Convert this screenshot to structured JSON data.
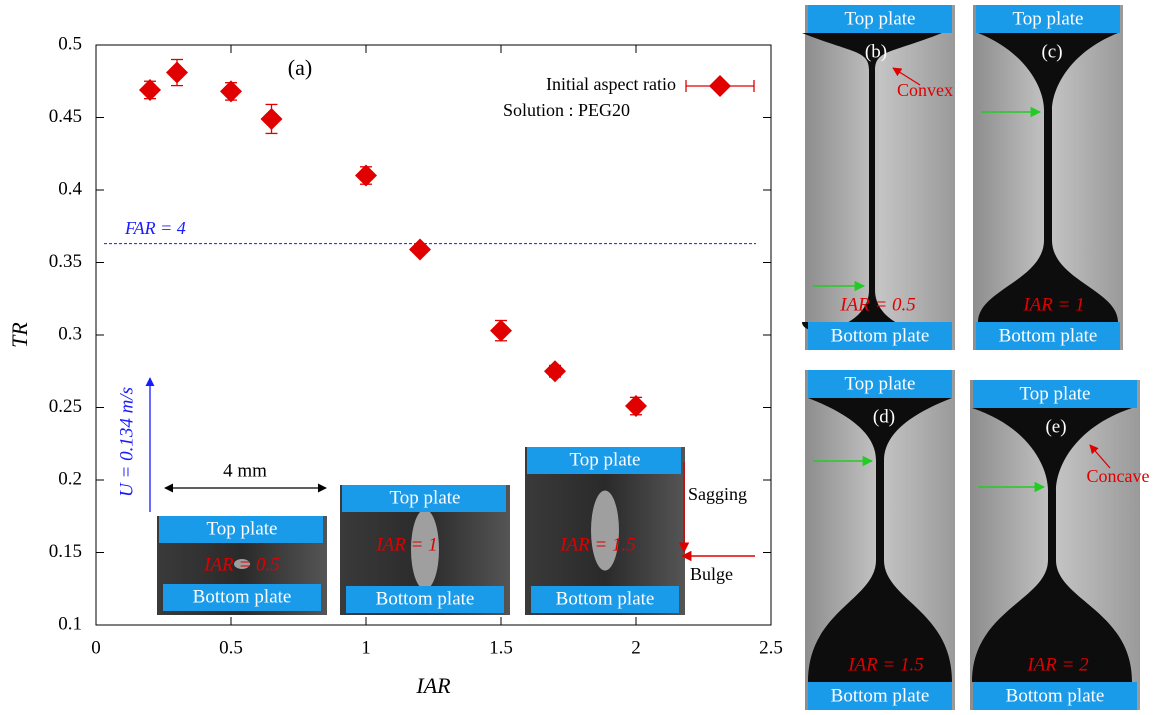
{
  "chart_data": {
    "type": "scatter",
    "xlabel": "IAR",
    "ylabel": "TR",
    "xlim": [
      0,
      2.5
    ],
    "xticks": [
      0,
      0.5,
      1,
      1.5,
      2,
      2.5
    ],
    "ylim": [
      0.1,
      0.5
    ],
    "yticks": [
      0.1,
      0.15,
      0.2,
      0.25,
      0.3,
      0.35,
      0.4,
      0.45,
      0.5
    ],
    "legend": "upper right",
    "series": [
      {
        "name": "Initial aspect ratio",
        "color": "#e00000",
        "x": [
          0.2,
          0.3,
          0.5,
          0.65,
          1.0,
          1.2,
          1.5,
          1.7,
          2.0
        ],
        "values": [
          0.469,
          0.481,
          0.468,
          0.449,
          0.41,
          0.359,
          0.303,
          0.275,
          0.251
        ],
        "errors": [
          0.006,
          0.009,
          0.006,
          0.01,
          0.006,
          0.003,
          0.007,
          0.004,
          0.006
        ]
      }
    ],
    "reference_line": {
      "value": 0.363,
      "label": "FAR = 4",
      "color": "#1a1aff"
    },
    "panel_label": "(a)",
    "solution": "Solution : PEG20",
    "velocity": "U = 0.134 m/s",
    "scale_bar": "4 mm"
  },
  "insets": [
    {
      "top": "Top plate",
      "bottom": "Bottom plate",
      "iar": "IAR = 0.5"
    },
    {
      "top": "Top plate",
      "bottom": "Bottom plate",
      "iar": "IAR = 1"
    },
    {
      "top": "Top plate",
      "bottom": "Bottom plate",
      "iar": "IAR = 1.5",
      "notes": [
        "Sagging",
        "Bulge"
      ]
    }
  ],
  "panels": [
    {
      "label": "(b)",
      "top": "Top plate",
      "bottom": "Bottom plate",
      "iar": "IAR = 0.5",
      "note": "Convex"
    },
    {
      "label": "(c)",
      "top": "Top plate",
      "bottom": "Bottom plate",
      "iar": "IAR = 1"
    },
    {
      "label": "(d)",
      "top": "Top plate",
      "bottom": "Bottom plate",
      "iar": "IAR = 1.5"
    },
    {
      "label": "(e)",
      "top": "Top plate",
      "bottom": "Bottom plate",
      "iar": "IAR = 2",
      "note": "Concave"
    }
  ]
}
